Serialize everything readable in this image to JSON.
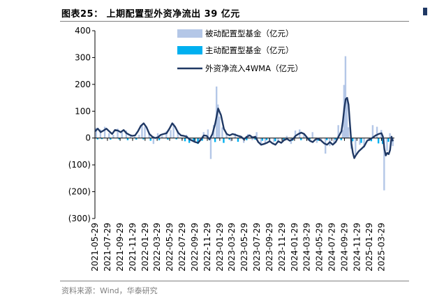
{
  "header": {
    "title": "图表25：  上期配置型外资净流出 39 亿元"
  },
  "footer": {
    "source": "资料来源：Wind，华泰研究"
  },
  "colors": {
    "passive": "#b4c7e7",
    "active": "#00b0f0",
    "line": "#1f3864",
    "axis": "#000000",
    "rule": "#7f7f7f"
  },
  "chart_data": {
    "type": "bar",
    "title": "",
    "xlabel": "",
    "ylabel": "",
    "ylim": [
      -300,
      400
    ],
    "yticks": [
      {
        "value": 400,
        "label": "400"
      },
      {
        "value": 300,
        "label": "300"
      },
      {
        "value": 200,
        "label": "200"
      },
      {
        "value": 100,
        "label": "100"
      },
      {
        "value": 0,
        "label": "0"
      },
      {
        "value": -100,
        "label": "(100)"
      },
      {
        "value": -200,
        "label": "(200)"
      },
      {
        "value": -300,
        "label": "(300)"
      }
    ],
    "xlim": [
      "2021-05-29",
      "2025-05-31"
    ],
    "xticks": [
      "2021-05-29",
      "2021-07-29",
      "2021-09-29",
      "2021-11-29",
      "2022-01-29",
      "2022-03-29",
      "2022-05-29",
      "2022-07-29",
      "2022-09-29",
      "2022-11-29",
      "2023-01-29",
      "2023-03-29",
      "2023-05-29",
      "2023-07-29",
      "2023-09-29",
      "2023-11-29",
      "2024-01-29",
      "2024-03-29",
      "2024-05-29",
      "2024-07-29",
      "2024-09-29",
      "2024-11-29",
      "2025-01-29",
      "2025-03-29"
    ],
    "legend": {
      "placement": "top-right"
    },
    "grid": false,
    "series": [
      {
        "name": "被动配置型基金（亿元）",
        "type": "bar",
        "points": [
          [
            "2021-06-04",
            38
          ],
          [
            "2021-06-25",
            32
          ],
          [
            "2021-07-16",
            42
          ],
          [
            "2021-08-06",
            18
          ],
          [
            "2021-08-27",
            12
          ],
          [
            "2021-09-17",
            35
          ],
          [
            "2021-10-08",
            22
          ],
          [
            "2021-10-29",
            28
          ],
          [
            "2021-11-19",
            8
          ],
          [
            "2021-12-10",
            5
          ],
          [
            "2021-12-31",
            12
          ],
          [
            "2022-01-14",
            50
          ],
          [
            "2022-01-28",
            42
          ],
          [
            "2022-02-18",
            20
          ],
          [
            "2022-03-11",
            -22
          ],
          [
            "2022-04-01",
            18
          ],
          [
            "2022-04-22",
            8
          ],
          [
            "2022-05-13",
            25
          ],
          [
            "2022-06-03",
            30
          ],
          [
            "2022-06-17",
            55
          ],
          [
            "2022-07-08",
            28
          ],
          [
            "2022-07-29",
            -5
          ],
          [
            "2022-08-19",
            12
          ],
          [
            "2022-09-09",
            -8
          ],
          [
            "2022-09-30",
            -15
          ],
          [
            "2022-10-21",
            -12
          ],
          [
            "2022-11-11",
            22
          ],
          [
            "2022-12-02",
            32
          ],
          [
            "2022-12-16",
            -78
          ],
          [
            "2022-12-30",
            48
          ],
          [
            "2023-01-13",
            192
          ],
          [
            "2023-01-20",
            125
          ],
          [
            "2023-01-27",
            80
          ],
          [
            "2023-02-10",
            40
          ],
          [
            "2023-03-03",
            15
          ],
          [
            "2023-03-24",
            -12
          ],
          [
            "2023-04-14",
            18
          ],
          [
            "2023-05-05",
            10
          ],
          [
            "2023-05-26",
            -18
          ],
          [
            "2023-06-16",
            15
          ],
          [
            "2023-07-07",
            -8
          ],
          [
            "2023-07-28",
            22
          ],
          [
            "2023-08-18",
            -28
          ],
          [
            "2023-09-08",
            -20
          ],
          [
            "2023-09-29",
            -12
          ],
          [
            "2023-10-20",
            -15
          ],
          [
            "2023-11-10",
            -18
          ],
          [
            "2023-12-01",
            -10
          ],
          [
            "2023-12-22",
            8
          ],
          [
            "2024-01-12",
            -22
          ],
          [
            "2024-02-02",
            28
          ],
          [
            "2024-02-23",
            32
          ],
          [
            "2024-03-15",
            12
          ],
          [
            "2024-04-05",
            -10
          ],
          [
            "2024-04-26",
            22
          ],
          [
            "2024-05-17",
            -18
          ],
          [
            "2024-06-07",
            -12
          ],
          [
            "2024-06-28",
            -58
          ],
          [
            "2024-07-19",
            -30
          ],
          [
            "2024-08-09",
            -18
          ],
          [
            "2024-08-30",
            48
          ],
          [
            "2024-09-20",
            30
          ],
          [
            "2024-09-27",
            198
          ],
          [
            "2024-10-04",
            305
          ],
          [
            "2024-10-11",
            150
          ],
          [
            "2024-10-18",
            40
          ],
          [
            "2024-11-01",
            -40
          ],
          [
            "2024-11-22",
            -60
          ],
          [
            "2024-12-13",
            -25
          ],
          [
            "2025-01-03",
            -35
          ],
          [
            "2025-01-24",
            -10
          ],
          [
            "2025-02-14",
            48
          ],
          [
            "2025-03-07",
            42
          ],
          [
            "2025-03-28",
            30
          ],
          [
            "2025-04-11",
            -195
          ],
          [
            "2025-04-25",
            -48
          ],
          [
            "2025-05-09",
            18
          ],
          [
            "2025-05-23",
            -30
          ]
        ]
      },
      {
        "name": "主动配置型基金（亿元）",
        "type": "bar",
        "points": [
          [
            "2021-06-11",
            -5
          ],
          [
            "2021-07-02",
            -4
          ],
          [
            "2021-08-13",
            -6
          ],
          [
            "2021-09-24",
            -5
          ],
          [
            "2021-11-05",
            -8
          ],
          [
            "2021-12-17",
            -6
          ],
          [
            "2022-01-21",
            -5
          ],
          [
            "2022-02-25",
            -10
          ],
          [
            "2022-04-08",
            -8
          ],
          [
            "2022-05-20",
            -6
          ],
          [
            "2022-07-01",
            -5
          ],
          [
            "2022-08-12",
            -12
          ],
          [
            "2022-09-02",
            -18
          ],
          [
            "2022-09-23",
            -12
          ],
          [
            "2022-10-14",
            -22
          ],
          [
            "2022-11-04",
            -10
          ],
          [
            "2022-12-09",
            -8
          ],
          [
            "2023-01-06",
            -15
          ],
          [
            "2023-02-17",
            -18
          ],
          [
            "2023-03-17",
            -6
          ],
          [
            "2023-04-28",
            -14
          ],
          [
            "2023-06-09",
            -8
          ],
          [
            "2023-07-21",
            -6
          ],
          [
            "2023-08-25",
            -10
          ],
          [
            "2023-09-15",
            -8
          ],
          [
            "2023-10-27",
            -12
          ],
          [
            "2023-12-08",
            -6
          ],
          [
            "2024-01-19",
            -10
          ],
          [
            "2024-03-01",
            -8
          ],
          [
            "2024-04-12",
            -6
          ],
          [
            "2024-05-24",
            -10
          ],
          [
            "2024-07-05",
            -8
          ],
          [
            "2024-08-16",
            -6
          ],
          [
            "2024-09-13",
            -8
          ],
          [
            "2024-11-08",
            -12
          ],
          [
            "2024-12-20",
            -18
          ],
          [
            "2025-02-07",
            -12
          ],
          [
            "2025-03-14",
            -20
          ],
          [
            "2025-04-04",
            -22
          ],
          [
            "2025-05-02",
            -14
          ]
        ]
      },
      {
        "name": "外资净流入4WMA（亿元）",
        "type": "line",
        "points": [
          [
            "2021-05-29",
            25
          ],
          [
            "2021-06-12",
            35
          ],
          [
            "2021-06-26",
            22
          ],
          [
            "2021-07-10",
            28
          ],
          [
            "2021-07-24",
            35
          ],
          [
            "2021-08-07",
            25
          ],
          [
            "2021-08-21",
            15
          ],
          [
            "2021-09-04",
            30
          ],
          [
            "2021-09-18",
            28
          ],
          [
            "2021-10-02",
            22
          ],
          [
            "2021-10-16",
            30
          ],
          [
            "2021-10-30",
            18
          ],
          [
            "2021-11-13",
            12
          ],
          [
            "2021-11-27",
            8
          ],
          [
            "2021-12-11",
            10
          ],
          [
            "2021-12-25",
            25
          ],
          [
            "2022-01-08",
            45
          ],
          [
            "2022-01-22",
            55
          ],
          [
            "2022-02-05",
            40
          ],
          [
            "2022-02-19",
            15
          ],
          [
            "2022-03-05",
            5
          ],
          [
            "2022-03-19",
            0
          ],
          [
            "2022-04-02",
            3
          ],
          [
            "2022-04-16",
            12
          ],
          [
            "2022-04-30",
            15
          ],
          [
            "2022-05-14",
            18
          ],
          [
            "2022-05-28",
            35
          ],
          [
            "2022-06-11",
            55
          ],
          [
            "2022-06-25",
            42
          ],
          [
            "2022-07-09",
            20
          ],
          [
            "2022-07-23",
            10
          ],
          [
            "2022-08-06",
            8
          ],
          [
            "2022-08-20",
            5
          ],
          [
            "2022-09-03",
            -5
          ],
          [
            "2022-09-17",
            -10
          ],
          [
            "2022-10-01",
            -15
          ],
          [
            "2022-10-15",
            -18
          ],
          [
            "2022-10-29",
            -5
          ],
          [
            "2022-11-12",
            10
          ],
          [
            "2022-11-26",
            8
          ],
          [
            "2022-12-10",
            -5
          ],
          [
            "2022-12-24",
            15
          ],
          [
            "2023-01-07",
            55
          ],
          [
            "2023-01-21",
            110
          ],
          [
            "2023-02-04",
            85
          ],
          [
            "2023-02-18",
            35
          ],
          [
            "2023-03-04",
            15
          ],
          [
            "2023-03-18",
            10
          ],
          [
            "2023-04-01",
            15
          ],
          [
            "2023-04-15",
            12
          ],
          [
            "2023-04-29",
            8
          ],
          [
            "2023-05-13",
            5
          ],
          [
            "2023-05-27",
            -5
          ],
          [
            "2023-06-10",
            5
          ],
          [
            "2023-06-24",
            10
          ],
          [
            "2023-07-08",
            2
          ],
          [
            "2023-07-22",
            5
          ],
          [
            "2023-08-05",
            -15
          ],
          [
            "2023-08-19",
            -25
          ],
          [
            "2023-09-02",
            -22
          ],
          [
            "2023-09-16",
            -18
          ],
          [
            "2023-09-30",
            -12
          ],
          [
            "2023-10-14",
            -20
          ],
          [
            "2023-10-28",
            -25
          ],
          [
            "2023-11-11",
            -12
          ],
          [
            "2023-11-25",
            -18
          ],
          [
            "2023-12-09",
            -8
          ],
          [
            "2023-12-23",
            -3
          ],
          [
            "2024-01-06",
            -10
          ],
          [
            "2024-01-20",
            -5
          ],
          [
            "2024-02-03",
            8
          ],
          [
            "2024-02-17",
            15
          ],
          [
            "2024-03-02",
            20
          ],
          [
            "2024-03-16",
            15
          ],
          [
            "2024-03-30",
            2
          ],
          [
            "2024-04-13",
            -10
          ],
          [
            "2024-04-27",
            -15
          ],
          [
            "2024-05-11",
            -5
          ],
          [
            "2024-05-25",
            -2
          ],
          [
            "2024-06-08",
            -10
          ],
          [
            "2024-06-22",
            -20
          ],
          [
            "2024-07-06",
            -25
          ],
          [
            "2024-07-20",
            -15
          ],
          [
            "2024-08-03",
            -25
          ],
          [
            "2024-08-17",
            -15
          ],
          [
            "2024-08-31",
            5
          ],
          [
            "2024-09-14",
            25
          ],
          [
            "2024-09-21",
            60
          ],
          [
            "2024-09-28",
            110
          ],
          [
            "2024-10-05",
            145
          ],
          [
            "2024-10-12",
            150
          ],
          [
            "2024-10-19",
            125
          ],
          [
            "2024-10-26",
            50
          ],
          [
            "2024-11-02",
            -20
          ],
          [
            "2024-11-09",
            -55
          ],
          [
            "2024-11-16",
            -75
          ],
          [
            "2024-11-23",
            -65
          ],
          [
            "2024-12-07",
            -50
          ],
          [
            "2024-12-21",
            -40
          ],
          [
            "2025-01-04",
            -30
          ],
          [
            "2025-01-18",
            -10
          ],
          [
            "2025-02-01",
            -5
          ],
          [
            "2025-02-15",
            2
          ],
          [
            "2025-03-01",
            10
          ],
          [
            "2025-03-15",
            15
          ],
          [
            "2025-03-29",
            18
          ],
          [
            "2025-04-05",
            5
          ],
          [
            "2025-04-12",
            -40
          ],
          [
            "2025-04-19",
            -65
          ],
          [
            "2025-04-26",
            -55
          ],
          [
            "2025-05-03",
            -60
          ],
          [
            "2025-05-10",
            -45
          ],
          [
            "2025-05-17",
            5
          ],
          [
            "2025-05-24",
            -12
          ]
        ]
      }
    ]
  }
}
